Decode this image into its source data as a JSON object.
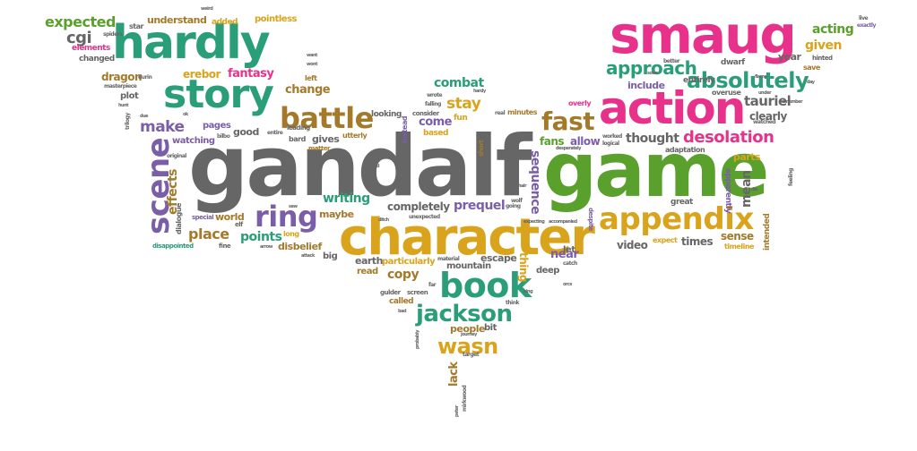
{
  "palette": {
    "gray": "#666666",
    "green": "#5aa02c",
    "teal": "#2a9d79",
    "magenta": "#e8318a",
    "gold": "#d9a31c",
    "purple": "#7b5ea8",
    "brown": "#a47a2a"
  },
  "words": {
    "gandalf": "gandalf",
    "game": "game",
    "character": "character",
    "smaug": "smaug",
    "hardly": "hardly",
    "action": "action",
    "story": "story",
    "book": "book",
    "appendix": "appendix",
    "battle": "battle",
    "scene": "scene",
    "ring": "ring",
    "jackson": "jackson",
    "fast": "fast",
    "absolutely": "absolutely",
    "approach": "approach",
    "desolation": "desolation",
    "expected": "expected",
    "understand": "understand",
    "pointless": "pointless",
    "acting": "acting",
    "given": "given",
    "cgi": "cgi",
    "fantasy": "fantasy",
    "erebor": "erebor",
    "dragon": "dragon",
    "make": "make",
    "combat": "combat",
    "stay": "stay",
    "come": "come",
    "change": "change",
    "place": "place",
    "points": "points",
    "writing": "writing",
    "prequel": "prequel",
    "completely": "completely",
    "sequence": "sequence",
    "thought": "thought",
    "tauriel": "tauriel",
    "clearly": "clearly",
    "fans": "fans",
    "allow": "allow",
    "copy": "copy",
    "wasn": "wasn",
    "people": "people",
    "mountain": "mountain",
    "escape": "escape",
    "earth": "earth",
    "particularly": "particularly",
    "near": "near",
    "read": "read",
    "disbelief": "disbelief",
    "video": "video",
    "times": "times",
    "sense": "sense",
    "mean": "mean",
    "effects": "effects",
    "maybe": "maybe",
    "world": "world",
    "gives": "gives",
    "thing": "thing",
    "lack": "lack",
    "year": "year",
    "dwarf": "dwarf",
    "include": "include",
    "entirely": "entirely",
    "parts": "parts",
    "good": "good",
    "pages": "pages",
    "watching": "watching",
    "plot": "plot",
    "star": "star",
    "added": "added",
    "left": "left",
    "changed": "changed",
    "elements": "elements",
    "spiders": "spiders",
    "exactly": "exactly",
    "save": "save",
    "hinted": "hinted",
    "live": "live",
    "overuse": "overuse",
    "adaptation": "adaptation",
    "great": "great",
    "expect": "expect",
    "timeline": "timeline",
    "intended": "intended",
    "apparently": "apparently",
    "big": "big",
    "bit": "bit",
    "deep": "deep",
    "let": "let",
    "called": "called",
    "catch": "catch",
    "fun": "fun",
    "based": "based",
    "looking": "looking",
    "consider": "consider",
    "instead": "instead",
    "utterly": "utterly",
    "bard": "bard",
    "matter": "matter",
    "leading": "leading",
    "dialogue": "dialogue",
    "special": "special",
    "elf": "elf",
    "fine": "fine",
    "long": "long",
    "disappointed": "disappointed",
    "original": "original",
    "masterpiece": "masterpiece",
    "overly": "overly",
    "real": "real",
    "minutes": "minutes",
    "short": "short",
    "gulder": "gulder",
    "screen": "screen",
    "target": "target",
    "journey": "journey",
    "think": "think",
    "despite": "despite",
    "material": "material",
    "far": "far",
    "unexpected": "unexpected",
    "wolf": "wolf",
    "feeling": "feeling",
    "watched": "watched",
    "remember": "remember",
    "worked": "worked",
    "logical": "logical",
    "better": "better",
    "desperately": "desperately",
    "going": "going",
    "expecting": "expecting",
    "accompanied": "accompanied",
    "trilogy": "trilogy",
    "due": "due",
    "durin": "durin",
    "wrote": "wrote",
    "falling": "falling",
    "hardy": "hardy",
    "entire": "entire",
    "bilbo": "bilbo",
    "peter": "peter",
    "mirkwood": "mirkwood",
    "probably": "probably",
    "king": "king",
    "orcs": "orcs",
    "want": "want",
    "tired": "tired",
    "ditch": "ditch",
    "saw": "saw",
    "attack": "attack",
    "arrow": "arrow",
    "hair": "hair",
    "day": "day",
    "flame": "flame",
    "under": "under",
    "weird": "weird",
    "die": "die",
    "soon": "soon",
    "hunt": "hunt",
    "bad": "bad",
    "wont": "wont",
    "ok": "ok"
  }
}
